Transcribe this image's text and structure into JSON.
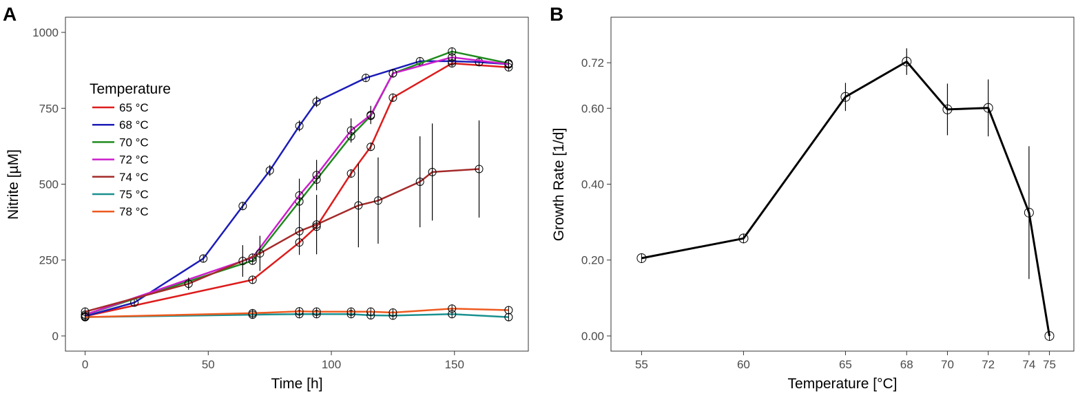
{
  "chart_data": [
    {
      "panel": "A",
      "type": "line",
      "title": "",
      "xlabel": "Time [h]",
      "ylabel": "Nitrite [µM]",
      "xlim": [
        -8,
        180
      ],
      "ylim": [
        -50,
        1050
      ],
      "xticks": [
        0,
        50,
        100,
        150
      ],
      "yticks": [
        0,
        250,
        500,
        750,
        1000
      ],
      "legend": {
        "title": "Temperature",
        "position": "top-left"
      },
      "colors": {
        "65 °C": "#dd1c1c",
        "68 °C": "#1c1cb8",
        "70 °C": "#1f8a1f",
        "72 °C": "#cc1ecc",
        "74 °C": "#a52a2a",
        "75 °C": "#1a9090",
        "78 °C": "#ee5a1e"
      },
      "series": [
        {
          "name": "65 °C",
          "x": [
            0,
            68,
            87,
            94,
            108,
            116,
            125,
            149,
            172
          ],
          "y": [
            65,
            185,
            308,
            360,
            535,
            623,
            785,
            898,
            885
          ],
          "err": [
            0,
            0,
            0,
            0,
            0,
            0,
            0,
            0,
            0
          ]
        },
        {
          "name": "68 °C",
          "x": [
            0,
            20,
            48,
            64,
            75,
            87,
            94,
            114,
            136,
            149,
            160,
            172
          ],
          "y": [
            65,
            110,
            255,
            428,
            545,
            692,
            772,
            850,
            905,
            905,
            902,
            895
          ],
          "err": [
            0,
            0,
            0,
            0,
            18,
            18,
            18,
            0,
            0,
            0,
            0,
            0
          ]
        },
        {
          "name": "70 °C",
          "x": [
            0,
            68,
            87,
            94,
            108,
            116,
            125,
            149,
            172
          ],
          "y": [
            70,
            248,
            443,
            515,
            658,
            725,
            865,
            937,
            898
          ],
          "err": [
            0,
            0,
            0,
            0,
            0,
            0,
            0,
            0,
            0
          ]
        },
        {
          "name": "72 °C",
          "x": [
            0,
            68,
            87,
            94,
            108,
            116,
            125,
            149,
            172
          ],
          "y": [
            70,
            258,
            463,
            530,
            677,
            728,
            865,
            918,
            895
          ],
          "err": [
            0,
            0,
            55,
            50,
            40,
            30,
            0,
            0,
            0
          ]
        },
        {
          "name": "74 °C",
          "x": [
            0,
            42,
            64,
            71,
            87,
            94,
            111,
            119,
            136,
            141,
            160
          ],
          "y": [
            80,
            172,
            247,
            272,
            345,
            367,
            430,
            446,
            508,
            540,
            550
          ],
          "err": [
            0,
            20,
            52,
            58,
            78,
            98,
            138,
            142,
            150,
            160,
            160
          ],
          "hollow": [
            true,
            true,
            true,
            true,
            true,
            true,
            true,
            true,
            true,
            true,
            true
          ]
        },
        {
          "name": "75 °C",
          "x": [
            0,
            68,
            87,
            94,
            108,
            116,
            125,
            149,
            172
          ],
          "y": [
            62,
            70,
            72,
            72,
            72,
            68,
            67,
            72,
            62
          ],
          "err": [
            0,
            0,
            0,
            0,
            0,
            0,
            0,
            0,
            0
          ]
        },
        {
          "name": "78 °C",
          "x": [
            0,
            68,
            87,
            94,
            108,
            116,
            125,
            149,
            172
          ],
          "y": [
            62,
            75,
            81,
            80,
            80,
            80,
            77,
            90,
            85
          ],
          "err": [
            0,
            0,
            0,
            0,
            0,
            0,
            0,
            0,
            0
          ]
        }
      ]
    },
    {
      "panel": "B",
      "type": "line",
      "title": "",
      "xlabel": "Temperature [°C]",
      "ylabel": "Growth Rate [1/d]",
      "xlim": [
        53.5,
        76.2
      ],
      "ylim": [
        -0.04,
        0.84
      ],
      "xticks": [
        55,
        60,
        65,
        68,
        70,
        72,
        74,
        75
      ],
      "yticks": [
        0.0,
        0.2,
        0.4,
        0.6,
        0.72
      ],
      "ytick_labels": [
        "0.00",
        "0.20",
        "0.40",
        "0.60",
        "0.72"
      ],
      "color": "#000000",
      "series": [
        {
          "name": "growth rate",
          "x": [
            55,
            60,
            65,
            68,
            70,
            72,
            74,
            75
          ],
          "y": [
            0.205,
            0.257,
            0.63,
            0.723,
            0.597,
            0.601,
            0.325,
            0.0
          ],
          "err": [
            0,
            0,
            0.037,
            0.035,
            0.068,
            0.075,
            0.175,
            0
          ]
        }
      ]
    }
  ],
  "panels": {
    "a_letter": "A",
    "b_letter": "B"
  }
}
